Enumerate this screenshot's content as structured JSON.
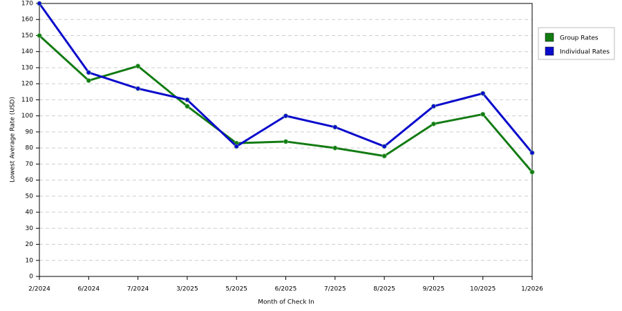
{
  "chart_data": {
    "type": "line",
    "x_label": "Month of Check In",
    "y_label": "Lowest Average Rate (USD)",
    "categories": [
      "2/2024",
      "6/2024",
      "7/2024",
      "3/2025",
      "5/2025",
      "6/2025",
      "7/2025",
      "8/2025",
      "9/2025",
      "10/2025",
      "1/2026"
    ],
    "series": [
      {
        "name": "Group Rates",
        "color": "#127b12",
        "values": [
          150,
          122,
          131,
          106,
          83,
          84,
          80,
          75,
          95,
          101,
          65
        ]
      },
      {
        "name": "Individual Rates",
        "color": "#0a0acc",
        "values": [
          170,
          127,
          117,
          110,
          81,
          100,
          93,
          81,
          106,
          114,
          77
        ]
      }
    ],
    "ylim": [
      0,
      170
    ],
    "yticks": [
      0,
      10,
      20,
      30,
      40,
      50,
      60,
      70,
      80,
      90,
      100,
      110,
      120,
      130,
      140,
      150,
      160,
      170
    ],
    "grid": true,
    "legend": "right"
  }
}
